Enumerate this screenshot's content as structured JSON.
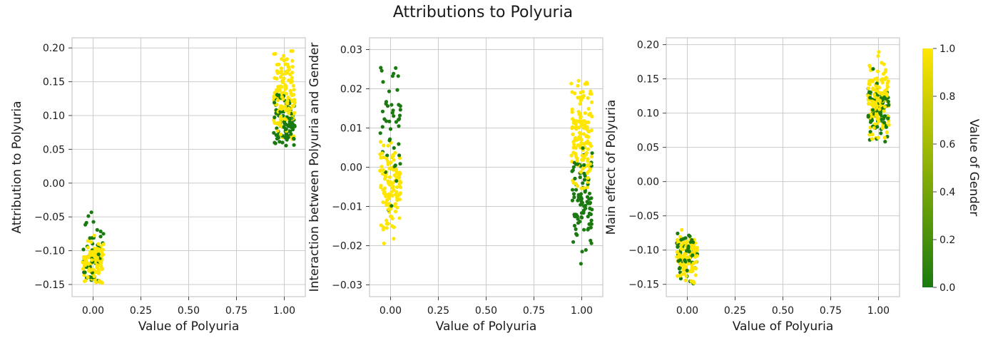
{
  "figure": {
    "suptitle": "Attributions to Polyuria",
    "colorbar": {
      "label": "Value of Gender",
      "ticks": [
        "0.0",
        "0.2",
        "0.4",
        "0.6",
        "0.8",
        "1.0"
      ],
      "range": [
        0,
        1
      ],
      "color_low": "#1a7a0f",
      "color_high": "#ffe600"
    }
  },
  "chart_data": [
    {
      "type": "scatter",
      "id": "total",
      "xlabel": "Value of Polyuria",
      "ylabel": "Attribution to Polyuria",
      "xlim": [
        -0.11,
        1.11
      ],
      "ylim": [
        -0.168,
        0.215
      ],
      "xticks": [
        0,
        0.25,
        0.5,
        0.75,
        1
      ],
      "xtick_labels": [
        "0.00",
        "0.25",
        "0.50",
        "0.75",
        "1.00"
      ],
      "yticks": [
        -0.15,
        -0.1,
        -0.05,
        0,
        0.05,
        0.1,
        0.15,
        0.2
      ],
      "ytick_labels": [
        "−0.15",
        "−0.10",
        "−0.05",
        "0.00",
        "0.05",
        "0.10",
        "0.15",
        "0.20"
      ],
      "grid": true,
      "colorbar_variable": "Gender",
      "clusters": [
        {
          "x": 0,
          "color_value": 1,
          "y_mean": -0.117,
          "y_sd": 0.016,
          "y_min": -0.148,
          "y_max": -0.05,
          "n": 110
        },
        {
          "x": 0,
          "color_value": 0,
          "y_mean": -0.095,
          "y_sd": 0.03,
          "y_min": -0.145,
          "y_max": -0.02,
          "n": 45
        },
        {
          "x": 1,
          "color_value": 1,
          "y_mean": 0.128,
          "y_sd": 0.03,
          "y_min": 0.065,
          "y_max": 0.2,
          "n": 140
        },
        {
          "x": 1,
          "color_value": 0,
          "y_mean": 0.092,
          "y_sd": 0.018,
          "y_min": 0.055,
          "y_max": 0.14,
          "n": 90
        }
      ]
    },
    {
      "type": "scatter",
      "id": "interaction",
      "xlabel": "Value of Polyuria",
      "ylabel": "Interaction between Polyuria and Gender",
      "xlim": [
        -0.11,
        1.11
      ],
      "ylim": [
        -0.033,
        0.033
      ],
      "xticks": [
        0,
        0.25,
        0.5,
        0.75,
        1
      ],
      "xtick_labels": [
        "0.00",
        "0.25",
        "0.50",
        "0.75",
        "1.00"
      ],
      "yticks": [
        -0.03,
        -0.02,
        -0.01,
        0,
        0.01,
        0.02,
        0.03
      ],
      "ytick_labels": [
        "−0.03",
        "−0.02",
        "−0.01",
        "0.00",
        "0.01",
        "0.02",
        "0.03"
      ],
      "grid": true,
      "colorbar_variable": "Gender",
      "clusters": [
        {
          "x": 0,
          "color_value": 1,
          "y_mean": -0.004,
          "y_sd": 0.005,
          "y_min": -0.021,
          "y_max": 0.01,
          "n": 115
        },
        {
          "x": 0,
          "color_value": 0,
          "y_mean": 0.011,
          "y_sd": 0.01,
          "y_min": -0.012,
          "y_max": 0.03,
          "n": 45
        },
        {
          "x": 1,
          "color_value": 1,
          "y_mean": 0.008,
          "y_sd": 0.006,
          "y_min": -0.006,
          "y_max": 0.023,
          "n": 140
        },
        {
          "x": 1,
          "color_value": 0,
          "y_mean": -0.009,
          "y_sd": 0.006,
          "y_min": -0.03,
          "y_max": 0.005,
          "n": 95
        }
      ]
    },
    {
      "type": "scatter",
      "id": "main",
      "xlabel": "Value of Polyuria",
      "ylabel": "Main effect of Polyuria",
      "xlim": [
        -0.11,
        1.11
      ],
      "ylim": [
        -0.168,
        0.21
      ],
      "xticks": [
        0,
        0.25,
        0.5,
        0.75,
        1
      ],
      "xtick_labels": [
        "0.00",
        "0.25",
        "0.50",
        "0.75",
        "1.00"
      ],
      "yticks": [
        -0.15,
        -0.1,
        -0.05,
        0,
        0.05,
        0.1,
        0.15,
        0.2
      ],
      "ytick_labels": [
        "−0.15",
        "−0.10",
        "−0.05",
        "0.00",
        "0.05",
        "0.10",
        "0.15",
        "0.20"
      ],
      "grid": true,
      "colorbar_variable": "Gender",
      "clusters": [
        {
          "x": 0,
          "color_value": 1,
          "y_mean": -0.11,
          "y_sd": 0.016,
          "y_min": -0.148,
          "y_max": -0.04,
          "n": 110
        },
        {
          "x": 0,
          "color_value": 0,
          "y_mean": -0.105,
          "y_sd": 0.022,
          "y_min": -0.152,
          "y_max": -0.03,
          "n": 50
        },
        {
          "x": 1,
          "color_value": 1,
          "y_mean": 0.12,
          "y_sd": 0.028,
          "y_min": 0.06,
          "y_max": 0.193,
          "n": 140
        },
        {
          "x": 1,
          "color_value": 0,
          "y_mean": 0.105,
          "y_sd": 0.02,
          "y_min": 0.058,
          "y_max": 0.19,
          "n": 90
        }
      ]
    }
  ]
}
